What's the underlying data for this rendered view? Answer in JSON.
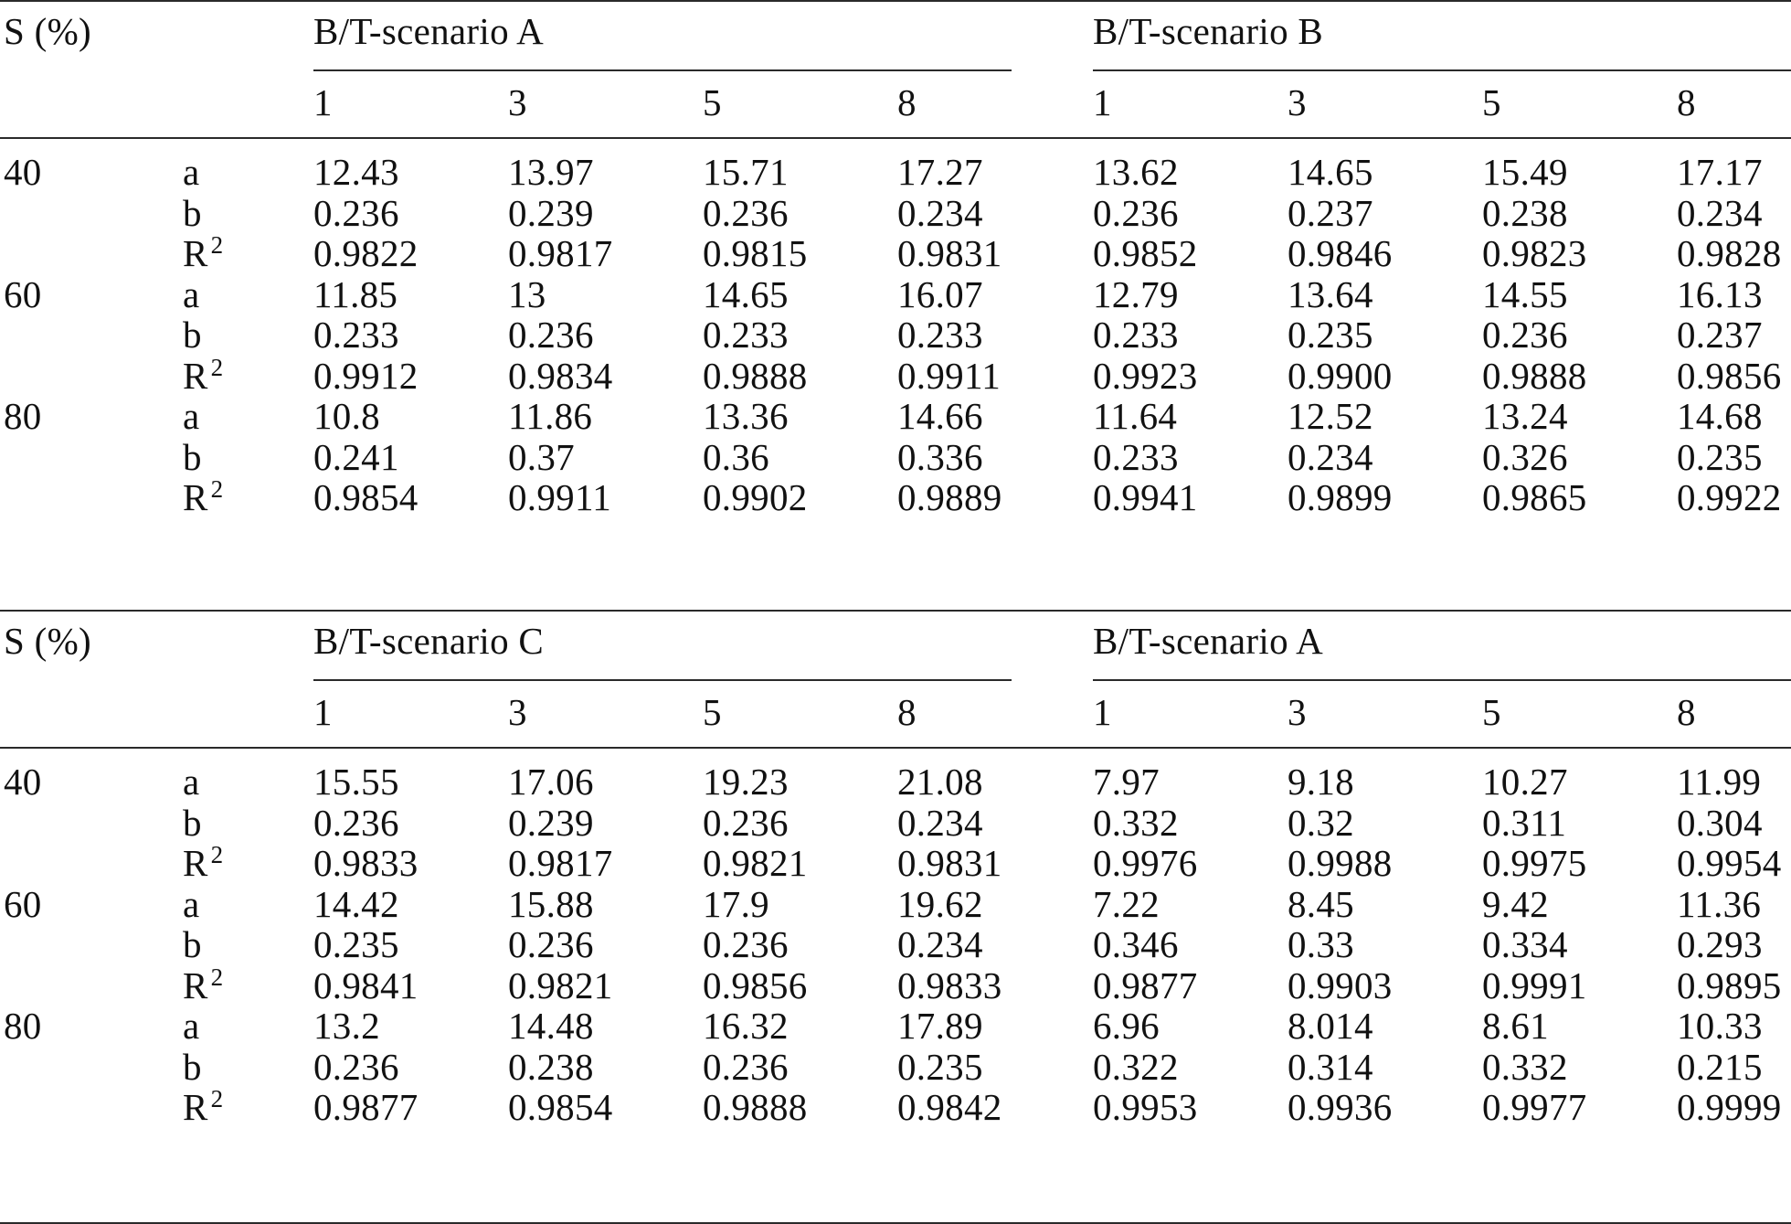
{
  "header_label": "S (%)",
  "sections": [
    {
      "scenarios": [
        "B/T-scenario  A",
        "B/T-scenario  B"
      ],
      "columns": [
        "1",
        "3",
        "5",
        "8",
        "1",
        "3",
        "5",
        "8"
      ],
      "groups": [
        {
          "s": "40",
          "rows": [
            {
              "param": "a",
              "sup": "",
              "values": [
                "12.43",
                "13.97",
                "15.71",
                "17.27",
                "13.62",
                "14.65",
                "15.49",
                "17.17"
              ]
            },
            {
              "param": "b",
              "sup": "",
              "values": [
                "0.236",
                "0.239",
                "0.236",
                "0.234",
                "0.236",
                "0.237",
                "0.238",
                "0.234"
              ]
            },
            {
              "param": "R",
              "sup": "2",
              "values": [
                "0.9822",
                "0.9817",
                "0.9815",
                "0.9831",
                "0.9852",
                "0.9846",
                "0.9823",
                "0.9828"
              ]
            }
          ]
        },
        {
          "s": "60",
          "rows": [
            {
              "param": "a",
              "sup": "",
              "values": [
                "11.85",
                "13",
                "14.65",
                "16.07",
                "12.79",
                "13.64",
                "14.55",
                "16.13"
              ]
            },
            {
              "param": "b",
              "sup": "",
              "values": [
                "0.233",
                "0.236",
                "0.233",
                "0.233",
                "0.233",
                "0.235",
                "0.236",
                "0.237"
              ]
            },
            {
              "param": "R",
              "sup": "2",
              "values": [
                "0.9912",
                "0.9834",
                "0.9888",
                "0.9911",
                "0.9923",
                "0.9900",
                "0.9888",
                "0.9856"
              ]
            }
          ]
        },
        {
          "s": "80",
          "rows": [
            {
              "param": "a",
              "sup": "",
              "values": [
                "10.8",
                "11.86",
                "13.36",
                "14.66",
                "11.64",
                "12.52",
                "13.24",
                "14.68"
              ]
            },
            {
              "param": "b",
              "sup": "",
              "values": [
                "0.241",
                "0.37",
                "0.36",
                "0.336",
                "0.233",
                "0.234",
                "0.326",
                "0.235"
              ]
            },
            {
              "param": "R",
              "sup": "2",
              "values": [
                "0.9854",
                "0.9911",
                "0.9902",
                "0.9889",
                "0.9941",
                "0.9899",
                "0.9865",
                "0.9922"
              ]
            }
          ]
        }
      ]
    },
    {
      "scenarios": [
        "B/T-scenario  C",
        "B/T-scenario  A"
      ],
      "columns": [
        "1",
        "3",
        "5",
        "8",
        "1",
        "3",
        "5",
        "8"
      ],
      "groups": [
        {
          "s": "40",
          "rows": [
            {
              "param": "a",
              "sup": "",
              "values": [
                "15.55",
                "17.06",
                "19.23",
                "21.08",
                "7.97",
                "9.18",
                "10.27",
                "11.99"
              ]
            },
            {
              "param": "b",
              "sup": "",
              "values": [
                "0.236",
                "0.239",
                "0.236",
                "0.234",
                "0.332",
                "0.32",
                "0.311",
                "0.304"
              ]
            },
            {
              "param": "R",
              "sup": "2",
              "values": [
                "0.9833",
                "0.9817",
                "0.9821",
                "0.9831",
                "0.9976",
                "0.9988",
                "0.9975",
                "0.9954"
              ]
            }
          ]
        },
        {
          "s": "60",
          "rows": [
            {
              "param": "a",
              "sup": "",
              "values": [
                "14.42",
                "15.88",
                "17.9",
                "19.62",
                "7.22",
                "8.45",
                "9.42",
                "11.36"
              ]
            },
            {
              "param": "b",
              "sup": "",
              "values": [
                "0.235",
                "0.236",
                "0.236",
                "0.234",
                "0.346",
                "0.33",
                "0.334",
                "0.293"
              ]
            },
            {
              "param": "R",
              "sup": "2",
              "values": [
                "0.9841",
                "0.9821",
                "0.9856",
                "0.9833",
                "0.9877",
                "0.9903",
                "0.9991",
                "0.9895"
              ]
            }
          ]
        },
        {
          "s": "80",
          "rows": [
            {
              "param": "a",
              "sup": "",
              "values": [
                "13.2",
                "14.48",
                "16.32",
                "17.89",
                "6.96",
                "8.014",
                "8.61",
                "10.33"
              ]
            },
            {
              "param": "b",
              "sup": "",
              "values": [
                "0.236",
                "0.238",
                "0.236",
                "0.235",
                "0.322",
                "0.314",
                "0.332",
                "0.215"
              ]
            },
            {
              "param": "R",
              "sup": "2",
              "values": [
                "0.9877",
                "0.9854",
                "0.9888",
                "0.9842",
                "0.9953",
                "0.9936",
                "0.9977",
                "0.9999"
              ]
            }
          ]
        }
      ]
    }
  ]
}
